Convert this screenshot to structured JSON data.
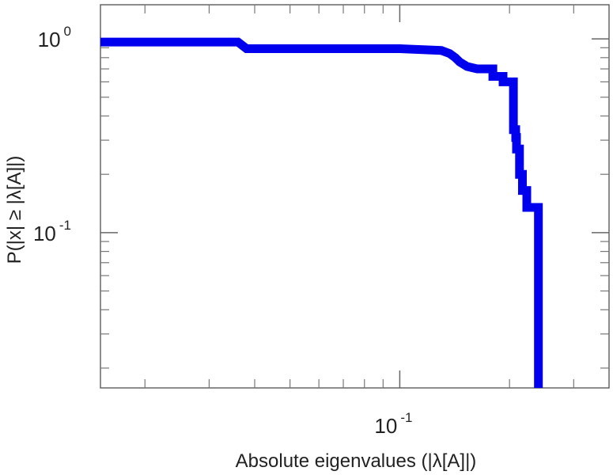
{
  "chart_data": {
    "type": "line",
    "title": "",
    "xlabel": "Absolute eigenvalues (|λ[A]|)",
    "ylabel": "P(|x| ≥ |λ[A]|)",
    "xscale": "log",
    "yscale": "log",
    "xlim": [
      0.0151,
      0.375
    ],
    "ylim": [
      0.0158,
      1.5
    ],
    "grid": false,
    "legend": "none",
    "x_ticks": [
      {
        "value": 0.1,
        "base": "10",
        "exponent": "-1"
      }
    ],
    "y_ticks": [
      {
        "value": 1,
        "base": "10",
        "exponent": "0"
      },
      {
        "value": 0.1,
        "base": "10",
        "exponent": "-1"
      }
    ],
    "series": [
      {
        "color": "#0000ee",
        "style": "step",
        "x": [
          0.0151,
          0.036,
          0.038,
          0.1,
          0.13,
          0.137,
          0.142,
          0.146,
          0.153,
          0.163,
          0.18,
          0.18,
          0.192,
          0.192,
          0.205,
          0.205,
          0.208,
          0.208,
          0.209,
          0.209,
          0.213,
          0.213,
          0.217,
          0.217,
          0.223,
          0.223,
          0.232,
          0.232,
          0.24,
          0.24
        ],
        "y": [
          0.963,
          0.963,
          0.89,
          0.89,
          0.872,
          0.84,
          0.8,
          0.76,
          0.72,
          0.7,
          0.7,
          0.64,
          0.64,
          0.6,
          0.6,
          0.34,
          0.34,
          0.31,
          0.31,
          0.27,
          0.27,
          0.2,
          0.2,
          0.165,
          0.165,
          0.135,
          0.135,
          0.135,
          0.135,
          0.0158
        ]
      }
    ]
  }
}
